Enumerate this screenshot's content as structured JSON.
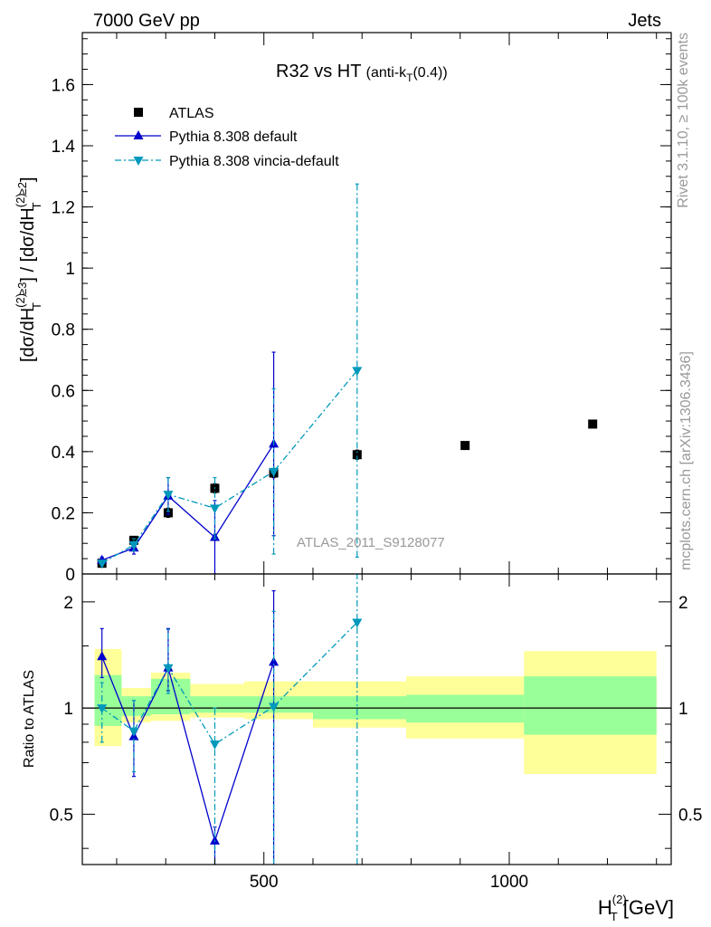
{
  "header": {
    "left": "7000 GeV pp",
    "right": "Jets"
  },
  "side_labels": {
    "rivet": "Rivet 3.1.10, ≥ 100k events",
    "mcplots": "mcplots.cern.ch [arXiv:1306.3436]"
  },
  "analysis_id": "ATLAS_2011_S9128077",
  "chart_data": [
    {
      "type": "scatter",
      "title": "R32 vs HT",
      "title_sub": "(anti-k",
      "title_sub_index": "T",
      "title_sub_end": "(0.4))",
      "ylabel_parts": {
        "p1": "[dσ/dH",
        "sup1": "(2)",
        "sub1": "T",
        "sub1b": "≥3",
        "mid": "] / [dσ/dH",
        "sup2": "(2)",
        "sub2": "T",
        "sub2b": "≥2",
        "end": "]"
      },
      "ylim": [
        0,
        1.77
      ],
      "xlim": [
        130,
        1330
      ],
      "y_ticks": [
        0,
        0.2,
        0.4,
        0.6,
        0.8,
        1,
        1.2,
        1.4,
        1.6
      ],
      "y_tick_labels": [
        "0",
        "0.2",
        "0.4",
        "0.6",
        "0.8",
        "1",
        "1.2",
        "1.4",
        "1.6"
      ],
      "legend": {
        "placement": "top-left",
        "entries": [
          "ATLAS",
          "Pythia 8.308 default",
          "Pythia 8.308 vincia-default"
        ]
      },
      "series": [
        {
          "name": "ATLAS",
          "color": "#000000",
          "marker": "square",
          "x": [
            170,
            235,
            305,
            400,
            520,
            690,
            910,
            1170
          ],
          "y": [
            0.035,
            0.11,
            0.2,
            0.28,
            0.33,
            0.39,
            0.42,
            0.49
          ],
          "err": [
            0.008,
            0.01,
            0.015,
            0.015,
            0.015,
            0.015,
            0.01,
            0.01
          ]
        },
        {
          "name": "Pythia 8.308 default",
          "color": "#0000cc",
          "marker": "triangle-up",
          "x": [
            170,
            235,
            305,
            400,
            520
          ],
          "y": [
            0.045,
            0.085,
            0.255,
            0.12,
            0.425
          ],
          "err": [
            0.01,
            0.02,
            0.06,
            0.12,
            0.3
          ]
        },
        {
          "name": "Pythia 8.308 vincia-default",
          "color": "#0099bb",
          "marker": "triangle-down",
          "x": [
            170,
            235,
            305,
            400,
            520,
            690
          ],
          "y": [
            0.035,
            0.095,
            0.26,
            0.215,
            0.335,
            0.665
          ],
          "err": [
            0.008,
            0.02,
            0.055,
            0.1,
            0.27,
            0.61
          ]
        }
      ]
    },
    {
      "type": "scatter",
      "ylabel": "Ratio to ATLAS",
      "xlabel_main": "H",
      "xlabel_sup": "(2)",
      "xlabel_sub": "T",
      "xlabel_unit": " [GeV]",
      "ylim": [
        0.36,
        2.4
      ],
      "y_scale": "log",
      "xlim": [
        130,
        1330
      ],
      "x_ticks": [
        500,
        1000
      ],
      "x_tick_labels": [
        "500",
        "1000"
      ],
      "y_ticks": [
        0.5,
        1,
        2
      ],
      "y_tick_labels": [
        "0.5",
        "1",
        "2"
      ],
      "bands": [
        {
          "x0": 155,
          "x1": 210,
          "yellow": [
            0.78,
            1.47
          ],
          "green": [
            0.89,
            1.24
          ]
        },
        {
          "x0": 210,
          "x1": 270,
          "yellow": [
            0.91,
            1.14
          ],
          "green": [
            0.95,
            1.08
          ]
        },
        {
          "x0": 270,
          "x1": 350,
          "yellow": [
            0.92,
            1.26
          ],
          "green": [
            0.96,
            1.21
          ]
        },
        {
          "x0": 350,
          "x1": 460,
          "yellow": [
            0.94,
            1.17
          ],
          "green": [
            0.97,
            1.08
          ]
        },
        {
          "x0": 460,
          "x1": 600,
          "yellow": [
            0.93,
            1.19
          ],
          "green": [
            0.97,
            1.08
          ]
        },
        {
          "x0": 600,
          "x1": 790,
          "yellow": [
            0.88,
            1.19
          ],
          "green": [
            0.93,
            1.08
          ]
        },
        {
          "x0": 790,
          "x1": 1030,
          "yellow": [
            0.82,
            1.23
          ],
          "green": [
            0.91,
            1.09
          ]
        },
        {
          "x0": 1030,
          "x1": 1300,
          "yellow": [
            0.65,
            1.45
          ],
          "green": [
            0.84,
            1.23
          ]
        }
      ],
      "series": [
        {
          "name": "Pythia 8.308 default",
          "color": "#0000cc",
          "marker": "triangle-up",
          "x": [
            170,
            235,
            305,
            400,
            520
          ],
          "y": [
            1.4,
            0.83,
            1.3,
            0.42,
            1.35
          ],
          "err_lo": [
            1.22,
            0.64,
            1.12,
            0.33,
            0.33
          ],
          "err_hi": [
            1.68,
            1.05,
            1.68,
            0.46,
            2.15
          ]
        },
        {
          "name": "Pythia 8.308 vincia-default",
          "color": "#0099bb",
          "marker": "triangle-down",
          "x": [
            170,
            235,
            305,
            400,
            520,
            690
          ],
          "y": [
            1.0,
            0.86,
            1.3,
            0.79,
            1.01,
            1.75
          ],
          "err_lo": [
            0.8,
            0.66,
            1.1,
            0.36,
            0.36,
            0.36
          ],
          "err_hi": [
            1.18,
            1.05,
            1.67,
            1.0,
            1.88,
            2.4
          ]
        }
      ]
    }
  ]
}
